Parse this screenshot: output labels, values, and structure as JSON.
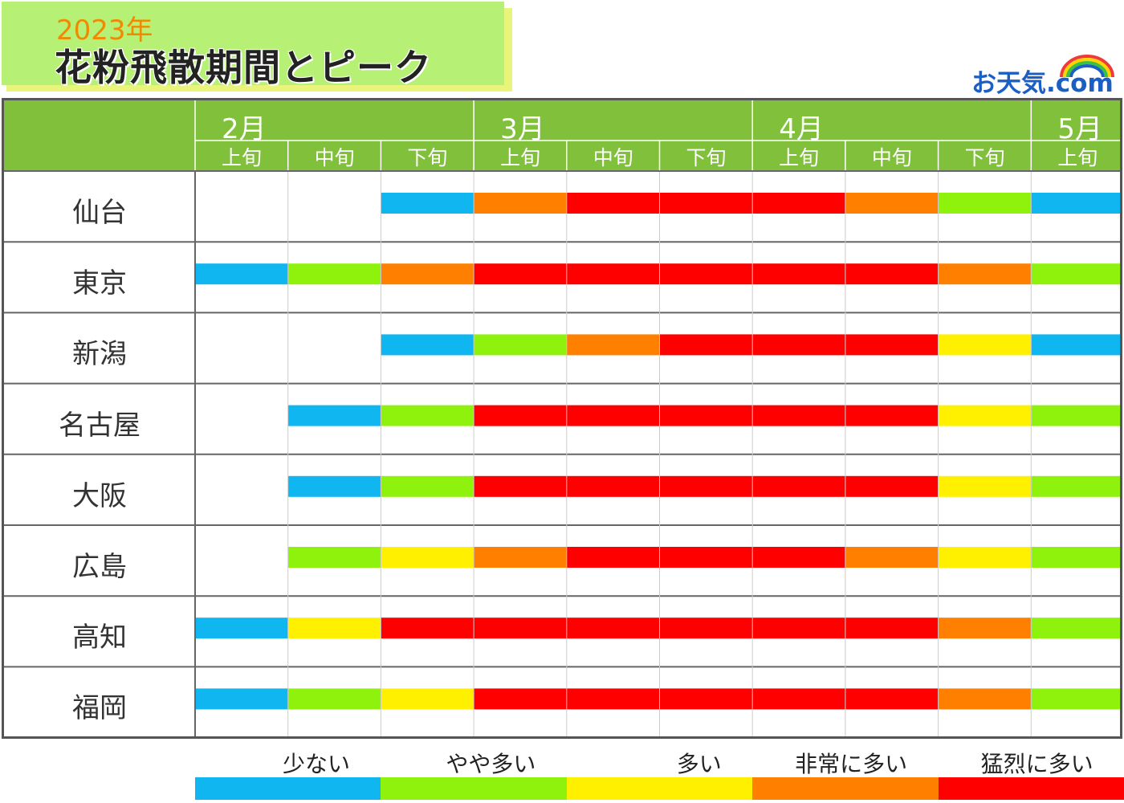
{
  "header": {
    "year": "2023年",
    "title": "花粉飛散期間とピーク",
    "logo": "お天気.com"
  },
  "colors": {
    "少ない": "#0fb6ef",
    "やや多い": "#8ef20c",
    "多い": "#fff000",
    "非常に多い": "#ff8000",
    "猛烈に多い": "#fe0000",
    "header_green": "#80c03a",
    "title_green": "#b6f075",
    "title_shadow": "#e9f57a"
  },
  "chart_data": {
    "type": "gantt",
    "title": "花粉飛散期間とピーク",
    "months": [
      {
        "label": "2月",
        "start": 0
      },
      {
        "label": "3月",
        "start": 3
      },
      {
        "label": "4月",
        "start": 6
      },
      {
        "label": "5月",
        "start": 9
      }
    ],
    "periods": [
      "上旬",
      "中旬",
      "下旬",
      "上旬",
      "中旬",
      "下旬",
      "上旬",
      "中旬",
      "下旬",
      "上旬"
    ],
    "levels": [
      "少ない",
      "やや多い",
      "多い",
      "非常に多い",
      "猛烈に多い"
    ],
    "rows": [
      {
        "city": "仙台",
        "values": [
          null,
          null,
          "少ない",
          "非常に多い",
          "猛烈に多い",
          "猛烈に多い",
          "猛烈に多い",
          "非常に多い",
          "やや多い",
          "少ない"
        ]
      },
      {
        "city": "東京",
        "values": [
          "少ない",
          "やや多い",
          "非常に多い",
          "猛烈に多い",
          "猛烈に多い",
          "猛烈に多い",
          "猛烈に多い",
          "猛烈に多い",
          "非常に多い",
          "やや多い"
        ]
      },
      {
        "city": "新潟",
        "values": [
          null,
          null,
          "少ない",
          "やや多い",
          "非常に多い",
          "猛烈に多い",
          "猛烈に多い",
          "猛烈に多い",
          "多い",
          "少ない"
        ]
      },
      {
        "city": "名古屋",
        "values": [
          null,
          "少ない",
          "やや多い",
          "猛烈に多い",
          "猛烈に多い",
          "猛烈に多い",
          "猛烈に多い",
          "猛烈に多い",
          "多い",
          "やや多い"
        ]
      },
      {
        "city": "大阪",
        "values": [
          null,
          "少ない",
          "やや多い",
          "猛烈に多い",
          "猛烈に多い",
          "猛烈に多い",
          "猛烈に多い",
          "猛烈に多い",
          "多い",
          "やや多い"
        ]
      },
      {
        "city": "広島",
        "values": [
          null,
          "やや多い",
          "多い",
          "非常に多い",
          "猛烈に多い",
          "猛烈に多い",
          "猛烈に多い",
          "非常に多い",
          "多い",
          "やや多い"
        ]
      },
      {
        "city": "高知",
        "values": [
          "少ない",
          "多い",
          "猛烈に多い",
          "猛烈に多い",
          "猛烈に多い",
          "猛烈に多い",
          "猛烈に多い",
          "猛烈に多い",
          "非常に多い",
          "やや多い"
        ]
      },
      {
        "city": "福岡",
        "values": [
          "少ない",
          "やや多い",
          "多い",
          "猛烈に多い",
          "猛烈に多い",
          "猛烈に多い",
          "猛烈に多い",
          "猛烈に多い",
          "非常に多い",
          "やや多い"
        ]
      }
    ],
    "legend": [
      "少ない",
      "やや多い",
      "多い",
      "非常に多い",
      "猛烈に多い"
    ]
  }
}
